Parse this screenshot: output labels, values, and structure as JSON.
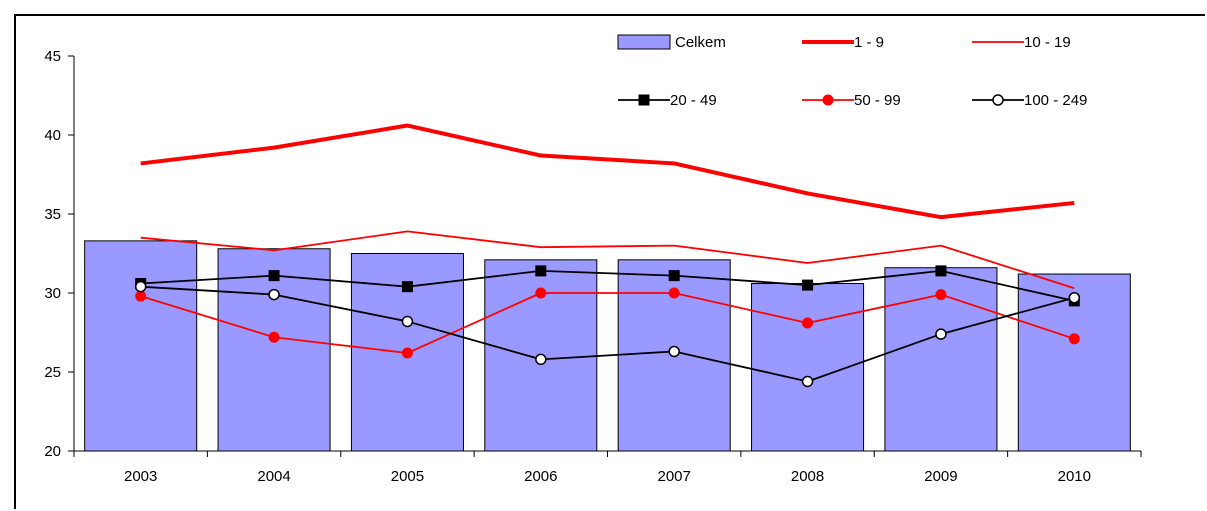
{
  "chart_data": {
    "type": "bar",
    "categories": [
      "2003",
      "2004",
      "2005",
      "2006",
      "2007",
      "2008",
      "2009",
      "2010"
    ],
    "ylim": [
      20,
      45
    ],
    "yticks": [
      20,
      25,
      30,
      35,
      40,
      45
    ],
    "grid": false,
    "legend_position": "top-right",
    "series": [
      {
        "name": "Celkem",
        "kind": "bar",
        "color": "#9999ff",
        "values": [
          33.3,
          32.8,
          32.5,
          32.1,
          32.1,
          30.6,
          31.6,
          31.2
        ]
      },
      {
        "name": "1 - 9",
        "kind": "line",
        "color": "#ff0000",
        "width": "thick",
        "marker": "none",
        "values": [
          38.2,
          39.2,
          40.6,
          38.7,
          38.2,
          36.3,
          34.8,
          35.7
        ]
      },
      {
        "name": "10 - 19",
        "kind": "line",
        "color": "#ff0000",
        "width": "thin",
        "marker": "none",
        "values": [
          33.5,
          32.7,
          33.9,
          32.9,
          33.0,
          31.9,
          33.0,
          30.3
        ]
      },
      {
        "name": "20 - 49",
        "kind": "line",
        "color": "#000000",
        "width": "thin",
        "marker": "square",
        "values": [
          30.6,
          31.1,
          30.4,
          31.4,
          31.1,
          30.5,
          31.4,
          29.5
        ]
      },
      {
        "name": "50 - 99",
        "kind": "line",
        "color": "#ff0000",
        "width": "thin",
        "marker": "circle-filled",
        "values": [
          29.8,
          27.2,
          26.2,
          30.0,
          30.0,
          28.1,
          29.9,
          27.1
        ]
      },
      {
        "name": "100 - 249",
        "kind": "line",
        "color": "#000000",
        "width": "thin",
        "marker": "circle-open",
        "values": [
          30.4,
          29.9,
          28.2,
          25.8,
          26.3,
          24.4,
          27.4,
          29.7
        ]
      }
    ]
  }
}
